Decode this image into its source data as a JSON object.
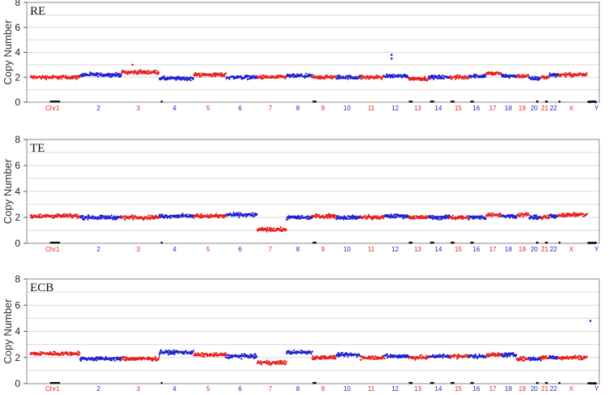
{
  "colors": {
    "red": "#e8211f",
    "blue": "#1f1fd0",
    "grid": "#d9d9d9",
    "frame": "#888888",
    "black": "#111111"
  },
  "chart_data": [
    {
      "type": "scatter",
      "title": "RE",
      "ylabel": "Copy Number",
      "ylim": [
        0,
        8
      ],
      "yticks": [
        "0",
        "2",
        "4",
        "6",
        "8"
      ],
      "grid": true,
      "chromosomes": [
        {
          "label": "Chr1",
          "color": "red",
          "level": 2.0
        },
        {
          "label": "2",
          "color": "blue",
          "level": 2.2
        },
        {
          "label": "3",
          "color": "red",
          "level": 2.4
        },
        {
          "label": "4",
          "color": "blue",
          "level": 1.9
        },
        {
          "label": "5",
          "color": "red",
          "level": 2.2
        },
        {
          "label": "6",
          "color": "blue",
          "level": 2.0
        },
        {
          "label": "7",
          "color": "red",
          "level": 2.0
        },
        {
          "label": "8",
          "color": "blue",
          "level": 2.1
        },
        {
          "label": "9",
          "color": "red",
          "level": 2.0
        },
        {
          "label": "10",
          "color": "blue",
          "level": 2.0
        },
        {
          "label": "11",
          "color": "red",
          "level": 2.0
        },
        {
          "label": "12",
          "color": "blue",
          "level": 2.1
        },
        {
          "label": "13",
          "color": "red",
          "level": 1.9
        },
        {
          "label": "14",
          "color": "blue",
          "level": 2.0
        },
        {
          "label": "15",
          "color": "red",
          "level": 2.0
        },
        {
          "label": "16",
          "color": "blue",
          "level": 2.1
        },
        {
          "label": "17",
          "color": "red",
          "level": 2.3
        },
        {
          "label": "18",
          "color": "blue",
          "level": 2.1
        },
        {
          "label": "19",
          "color": "red",
          "level": 2.1
        },
        {
          "label": "20",
          "color": "blue",
          "level": 1.9
        },
        {
          "label": "21",
          "color": "red",
          "level": 2.0
        },
        {
          "label": "22",
          "color": "blue",
          "level": 2.2
        },
        {
          "label": "X",
          "color": "red",
          "level": 2.2
        },
        {
          "label": "Y",
          "color": "blue",
          "level": 0.0
        }
      ],
      "outliers": [
        {
          "chr": "12",
          "y": 3.8
        },
        {
          "chr": "12",
          "y": 3.5
        },
        {
          "chr": "3",
          "y": 3.0
        }
      ]
    },
    {
      "type": "scatter",
      "title": "TE",
      "ylabel": "Copy Number",
      "ylim": [
        0,
        8
      ],
      "yticks": [
        "0",
        "2",
        "4",
        "6",
        "8"
      ],
      "grid": true,
      "chromosomes": [
        {
          "label": "Chr1",
          "color": "red",
          "level": 2.1
        },
        {
          "label": "2",
          "color": "blue",
          "level": 2.0
        },
        {
          "label": "3",
          "color": "red",
          "level": 2.0
        },
        {
          "label": "4",
          "color": "blue",
          "level": 2.1
        },
        {
          "label": "5",
          "color": "red",
          "level": 2.1
        },
        {
          "label": "6",
          "color": "blue",
          "level": 2.2
        },
        {
          "label": "7",
          "color": "red",
          "level": 1.05
        },
        {
          "label": "8",
          "color": "blue",
          "level": 2.0
        },
        {
          "label": "9",
          "color": "red",
          "level": 2.1
        },
        {
          "label": "10",
          "color": "blue",
          "level": 2.0
        },
        {
          "label": "11",
          "color": "red",
          "level": 2.0
        },
        {
          "label": "12",
          "color": "blue",
          "level": 2.1
        },
        {
          "label": "13",
          "color": "red",
          "level": 2.0
        },
        {
          "label": "14",
          "color": "blue",
          "level": 2.0
        },
        {
          "label": "15",
          "color": "red",
          "level": 2.0
        },
        {
          "label": "16",
          "color": "blue",
          "level": 2.0
        },
        {
          "label": "17",
          "color": "red",
          "level": 2.2
        },
        {
          "label": "18",
          "color": "blue",
          "level": 2.1
        },
        {
          "label": "19",
          "color": "red",
          "level": 2.2
        },
        {
          "label": "20",
          "color": "blue",
          "level": 2.0
        },
        {
          "label": "21",
          "color": "red",
          "level": 2.0
        },
        {
          "label": "22",
          "color": "blue",
          "level": 2.1
        },
        {
          "label": "X",
          "color": "red",
          "level": 2.2
        },
        {
          "label": "Y",
          "color": "blue",
          "level": 0.0
        }
      ],
      "outliers": []
    },
    {
      "type": "scatter",
      "title": "ECB",
      "ylabel": "Copy Number",
      "ylim": [
        0,
        8
      ],
      "yticks": [
        "0",
        "2",
        "4",
        "6",
        "8"
      ],
      "grid": true,
      "chromosomes": [
        {
          "label": "Chr1",
          "color": "red",
          "level": 2.3
        },
        {
          "label": "2",
          "color": "blue",
          "level": 1.9
        },
        {
          "label": "3",
          "color": "red",
          "level": 1.9
        },
        {
          "label": "4",
          "color": "blue",
          "level": 2.4
        },
        {
          "label": "5",
          "color": "red",
          "level": 2.2
        },
        {
          "label": "6",
          "color": "blue",
          "level": 2.1
        },
        {
          "label": "7",
          "color": "red",
          "level": 1.6
        },
        {
          "label": "8",
          "color": "blue",
          "level": 2.4
        },
        {
          "label": "9",
          "color": "red",
          "level": 2.0
        },
        {
          "label": "10",
          "color": "blue",
          "level": 2.2
        },
        {
          "label": "11",
          "color": "red",
          "level": 2.0
        },
        {
          "label": "12",
          "color": "blue",
          "level": 2.1
        },
        {
          "label": "13",
          "color": "red",
          "level": 2.0
        },
        {
          "label": "14",
          "color": "blue",
          "level": 2.1
        },
        {
          "label": "15",
          "color": "red",
          "level": 2.1
        },
        {
          "label": "16",
          "color": "blue",
          "level": 2.1
        },
        {
          "label": "17",
          "color": "red",
          "level": 2.2
        },
        {
          "label": "18",
          "color": "blue",
          "level": 2.2
        },
        {
          "label": "19",
          "color": "red",
          "level": 1.9
        },
        {
          "label": "20",
          "color": "blue",
          "level": 1.9
        },
        {
          "label": "21",
          "color": "red",
          "level": 2.0
        },
        {
          "label": "22",
          "color": "blue",
          "level": 2.0
        },
        {
          "label": "X",
          "color": "red",
          "level": 2.0
        },
        {
          "label": "Y",
          "color": "blue",
          "level": 0.0
        }
      ],
      "outliers": [
        {
          "chr": "Y",
          "y": 4.8
        }
      ]
    }
  ]
}
